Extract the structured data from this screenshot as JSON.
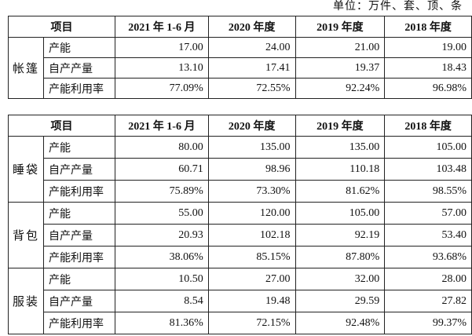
{
  "unit_note": "单位：万件、套、顶、条",
  "headers": [
    "项目",
    "2021 年 1-6 月",
    "2020 年度",
    "2019 年度",
    "2018 年度"
  ],
  "table1": {
    "groups": [
      {
        "name": "帐篷",
        "rows": [
          {
            "item": "产能",
            "values": [
              "17.00",
              "24.00",
              "21.00",
              "19.00"
            ]
          },
          {
            "item": "自产产量",
            "values": [
              "13.10",
              "17.41",
              "19.37",
              "18.43"
            ]
          },
          {
            "item": "产能利用率",
            "values": [
              "77.09%",
              "72.55%",
              "92.24%",
              "96.98%"
            ]
          }
        ]
      }
    ]
  },
  "table2": {
    "groups": [
      {
        "name": "睡袋",
        "rows": [
          {
            "item": "产能",
            "values": [
              "80.00",
              "135.00",
              "135.00",
              "105.00"
            ]
          },
          {
            "item": "自产产量",
            "values": [
              "60.71",
              "98.96",
              "110.18",
              "103.48"
            ]
          },
          {
            "item": "产能利用率",
            "values": [
              "75.89%",
              "73.30%",
              "81.62%",
              "98.55%"
            ]
          }
        ]
      },
      {
        "name": "背包",
        "rows": [
          {
            "item": "产能",
            "values": [
              "55.00",
              "120.00",
              "105.00",
              "57.00"
            ]
          },
          {
            "item": "自产产量",
            "values": [
              "20.93",
              "102.18",
              "92.19",
              "53.40"
            ]
          },
          {
            "item": "产能利用率",
            "values": [
              "38.06%",
              "85.15%",
              "87.80%",
              "93.68%"
            ]
          }
        ]
      },
      {
        "name": "服装",
        "rows": [
          {
            "item": "产能",
            "values": [
              "10.50",
              "27.00",
              "32.00",
              "28.00"
            ]
          },
          {
            "item": "自产产量",
            "values": [
              "8.54",
              "19.48",
              "29.59",
              "27.82"
            ]
          },
          {
            "item": "产能利用率",
            "values": [
              "81.36%",
              "72.15%",
              "92.48%",
              "99.37%"
            ]
          }
        ]
      }
    ]
  }
}
